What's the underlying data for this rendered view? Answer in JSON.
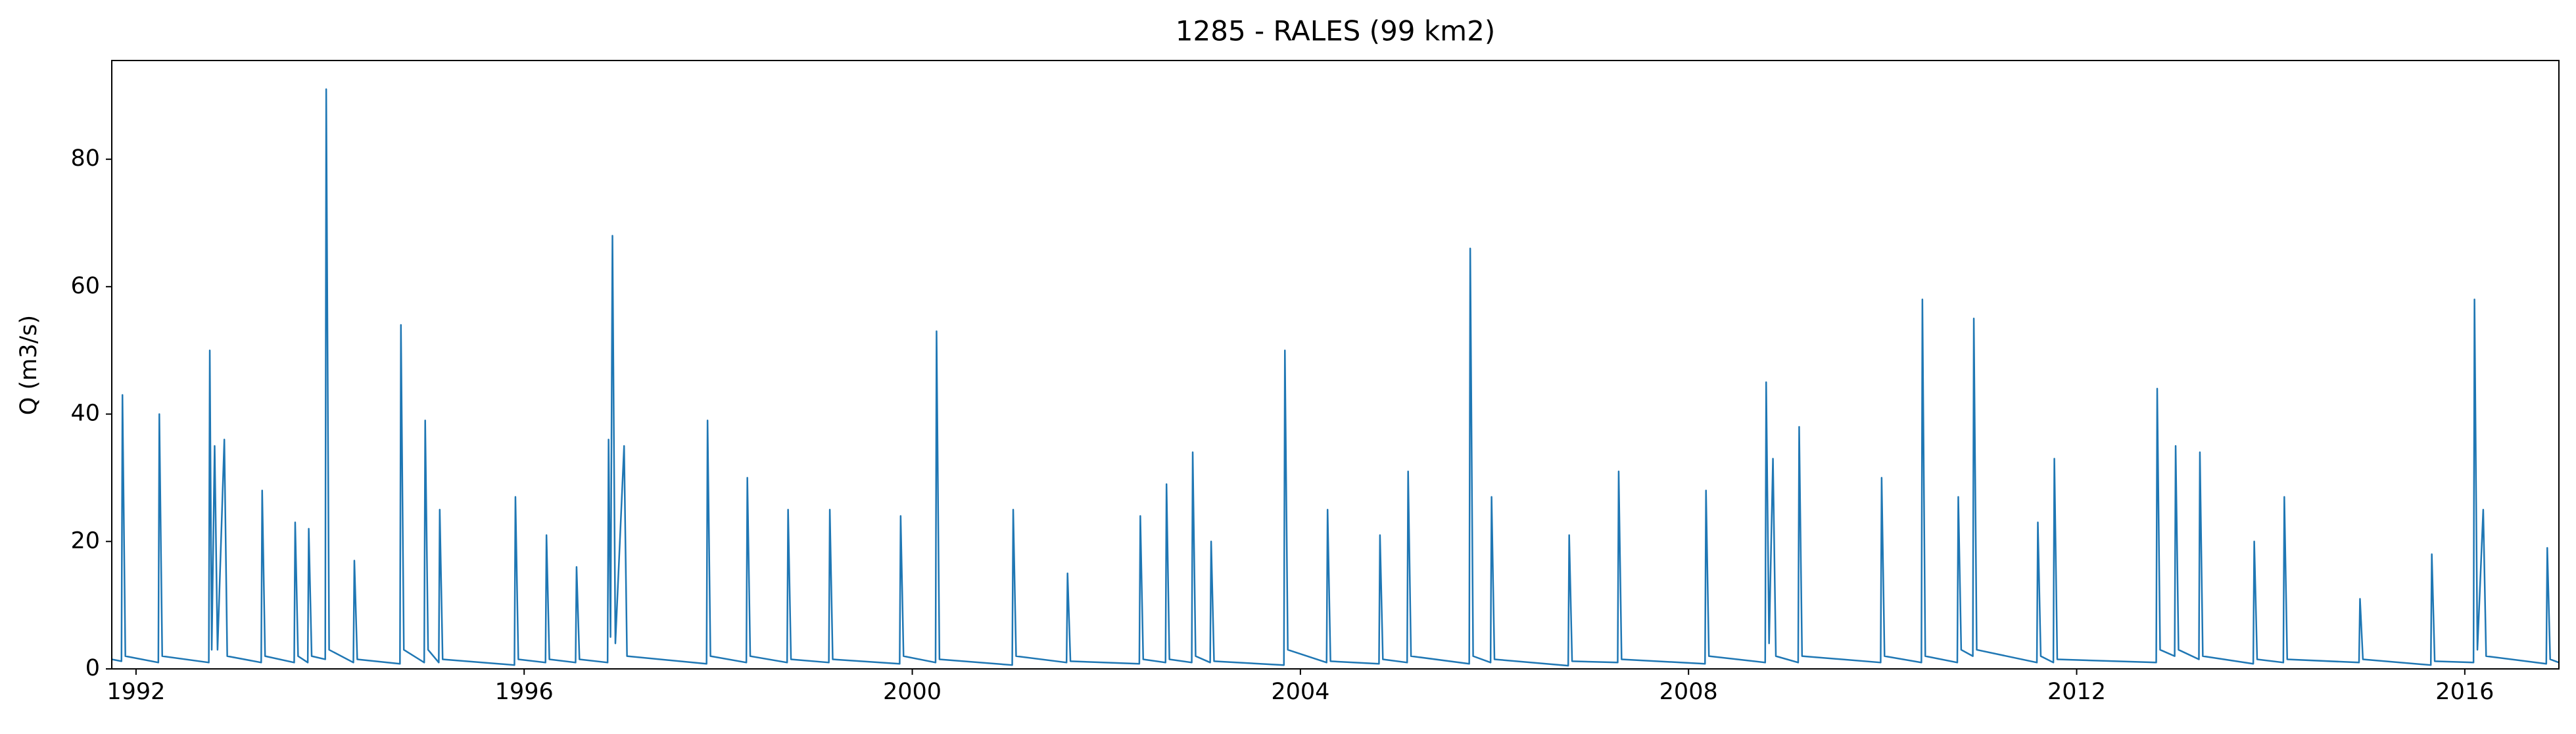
{
  "chart_data": {
    "type": "line",
    "title": "1285 - RALES (99 km2)",
    "ylabel": "Q (m3/s)",
    "color": "#1f77b4",
    "xlim": [
      1991.75,
      2016.97
    ],
    "xticks": [
      1992,
      1996,
      2000,
      2004,
      2008,
      2012,
      2016
    ],
    "ylim": [
      0,
      95.5
    ],
    "yticks": [
      0,
      20,
      40,
      60,
      80
    ],
    "x": [
      1991.75,
      1991.85,
      1991.86,
      1991.89,
      1992.23,
      1992.24,
      1992.27,
      1992.75,
      1992.76,
      1992.78,
      1992.81,
      1992.84,
      1992.91,
      1992.94,
      1993.29,
      1993.3,
      1993.33,
      1993.63,
      1993.64,
      1993.67,
      1993.77,
      1993.78,
      1993.81,
      1993.95,
      1993.96,
      1993.99,
      1994.24,
      1994.25,
      1994.28,
      1994.72,
      1994.73,
      1994.76,
      1994.97,
      1994.98,
      1995.01,
      1995.12,
      1995.13,
      1995.16,
      1995.9,
      1995.91,
      1995.94,
      1996.22,
      1996.23,
      1996.26,
      1996.53,
      1996.54,
      1996.57,
      1996.86,
      1996.87,
      1996.89,
      1996.91,
      1996.94,
      1997.03,
      1997.06,
      1997.88,
      1997.89,
      1997.92,
      1998.29,
      1998.3,
      1998.33,
      1998.71,
      1998.72,
      1998.75,
      1999.14,
      1999.15,
      1999.18,
      1999.87,
      1999.88,
      1999.91,
      2000.24,
      2000.25,
      2000.28,
      2001.03,
      2001.04,
      2001.07,
      2001.59,
      2001.6,
      2001.63,
      2002.34,
      2002.35,
      2002.38,
      2002.61,
      2002.62,
      2002.65,
      2002.88,
      2002.89,
      2002.92,
      2003.07,
      2003.08,
      2003.11,
      2003.83,
      2003.84,
      2003.87,
      2004.27,
      2004.28,
      2004.31,
      2004.81,
      2004.82,
      2004.85,
      2005.1,
      2005.11,
      2005.14,
      2005.74,
      2005.75,
      2005.78,
      2005.96,
      2005.97,
      2006.0,
      2006.76,
      2006.77,
      2006.8,
      2007.27,
      2007.28,
      2007.31,
      2008.17,
      2008.18,
      2008.21,
      2008.79,
      2008.8,
      2008.83,
      2008.87,
      2008.9,
      2009.13,
      2009.14,
      2009.17,
      2009.98,
      2009.99,
      2010.02,
      2010.4,
      2010.41,
      2010.44,
      2010.77,
      2010.78,
      2010.81,
      2010.93,
      2010.94,
      2010.97,
      2011.59,
      2011.6,
      2011.63,
      2011.76,
      2011.77,
      2011.8,
      2012.82,
      2012.83,
      2012.86,
      2013.01,
      2013.02,
      2013.05,
      2013.26,
      2013.27,
      2013.3,
      2013.82,
      2013.83,
      2013.86,
      2014.13,
      2014.14,
      2014.17,
      2014.91,
      2014.92,
      2014.95,
      2015.65,
      2015.66,
      2015.69,
      2016.09,
      2016.1,
      2016.13,
      2016.19,
      2016.22,
      2016.84,
      2016.85,
      2016.88,
      2016.97
    ],
    "values": [
      1.5,
      1.2,
      43,
      2,
      1,
      40,
      2,
      1,
      50,
      3,
      35,
      3,
      36,
      2,
      1,
      28,
      2,
      1,
      23,
      2,
      1,
      22,
      2,
      1.5,
      91,
      3,
      1,
      17,
      1.5,
      0.8,
      54,
      3,
      1,
      39,
      3,
      1,
      25,
      1.5,
      0.6,
      27,
      1.5,
      1,
      21,
      1.5,
      1,
      16,
      1.5,
      1,
      36,
      5,
      68,
      4,
      35,
      2,
      0.8,
      39,
      2,
      1,
      30,
      2,
      1,
      25,
      1.5,
      1,
      25,
      1.5,
      0.8,
      24,
      2,
      1,
      53,
      1.5,
      0.6,
      25,
      2,
      1,
      15,
      1.2,
      0.8,
      24,
      1.5,
      1,
      29,
      1.5,
      1,
      34,
      2,
      1,
      20,
      1.2,
      0.6,
      50,
      3,
      1,
      25,
      1.2,
      0.8,
      21,
      1.5,
      1,
      31,
      2,
      0.8,
      66,
      2,
      1,
      27,
      1.5,
      0.5,
      21,
      1.2,
      1,
      31,
      1.5,
      0.8,
      28,
      2,
      1,
      45,
      4,
      33,
      2,
      1,
      38,
      2,
      1,
      30,
      2,
      1,
      58,
      2,
      1,
      27,
      3,
      2,
      55,
      3,
      1,
      23,
      2,
      1,
      33,
      1.5,
      1,
      44,
      3,
      2,
      35,
      3,
      1.5,
      34,
      2,
      0.8,
      20,
      1.5,
      1,
      27,
      1.5,
      1,
      11,
      1.5,
      0.6,
      18,
      1.2,
      1,
      58,
      3,
      25,
      2,
      0.8,
      19,
      1.5,
      1
    ]
  }
}
